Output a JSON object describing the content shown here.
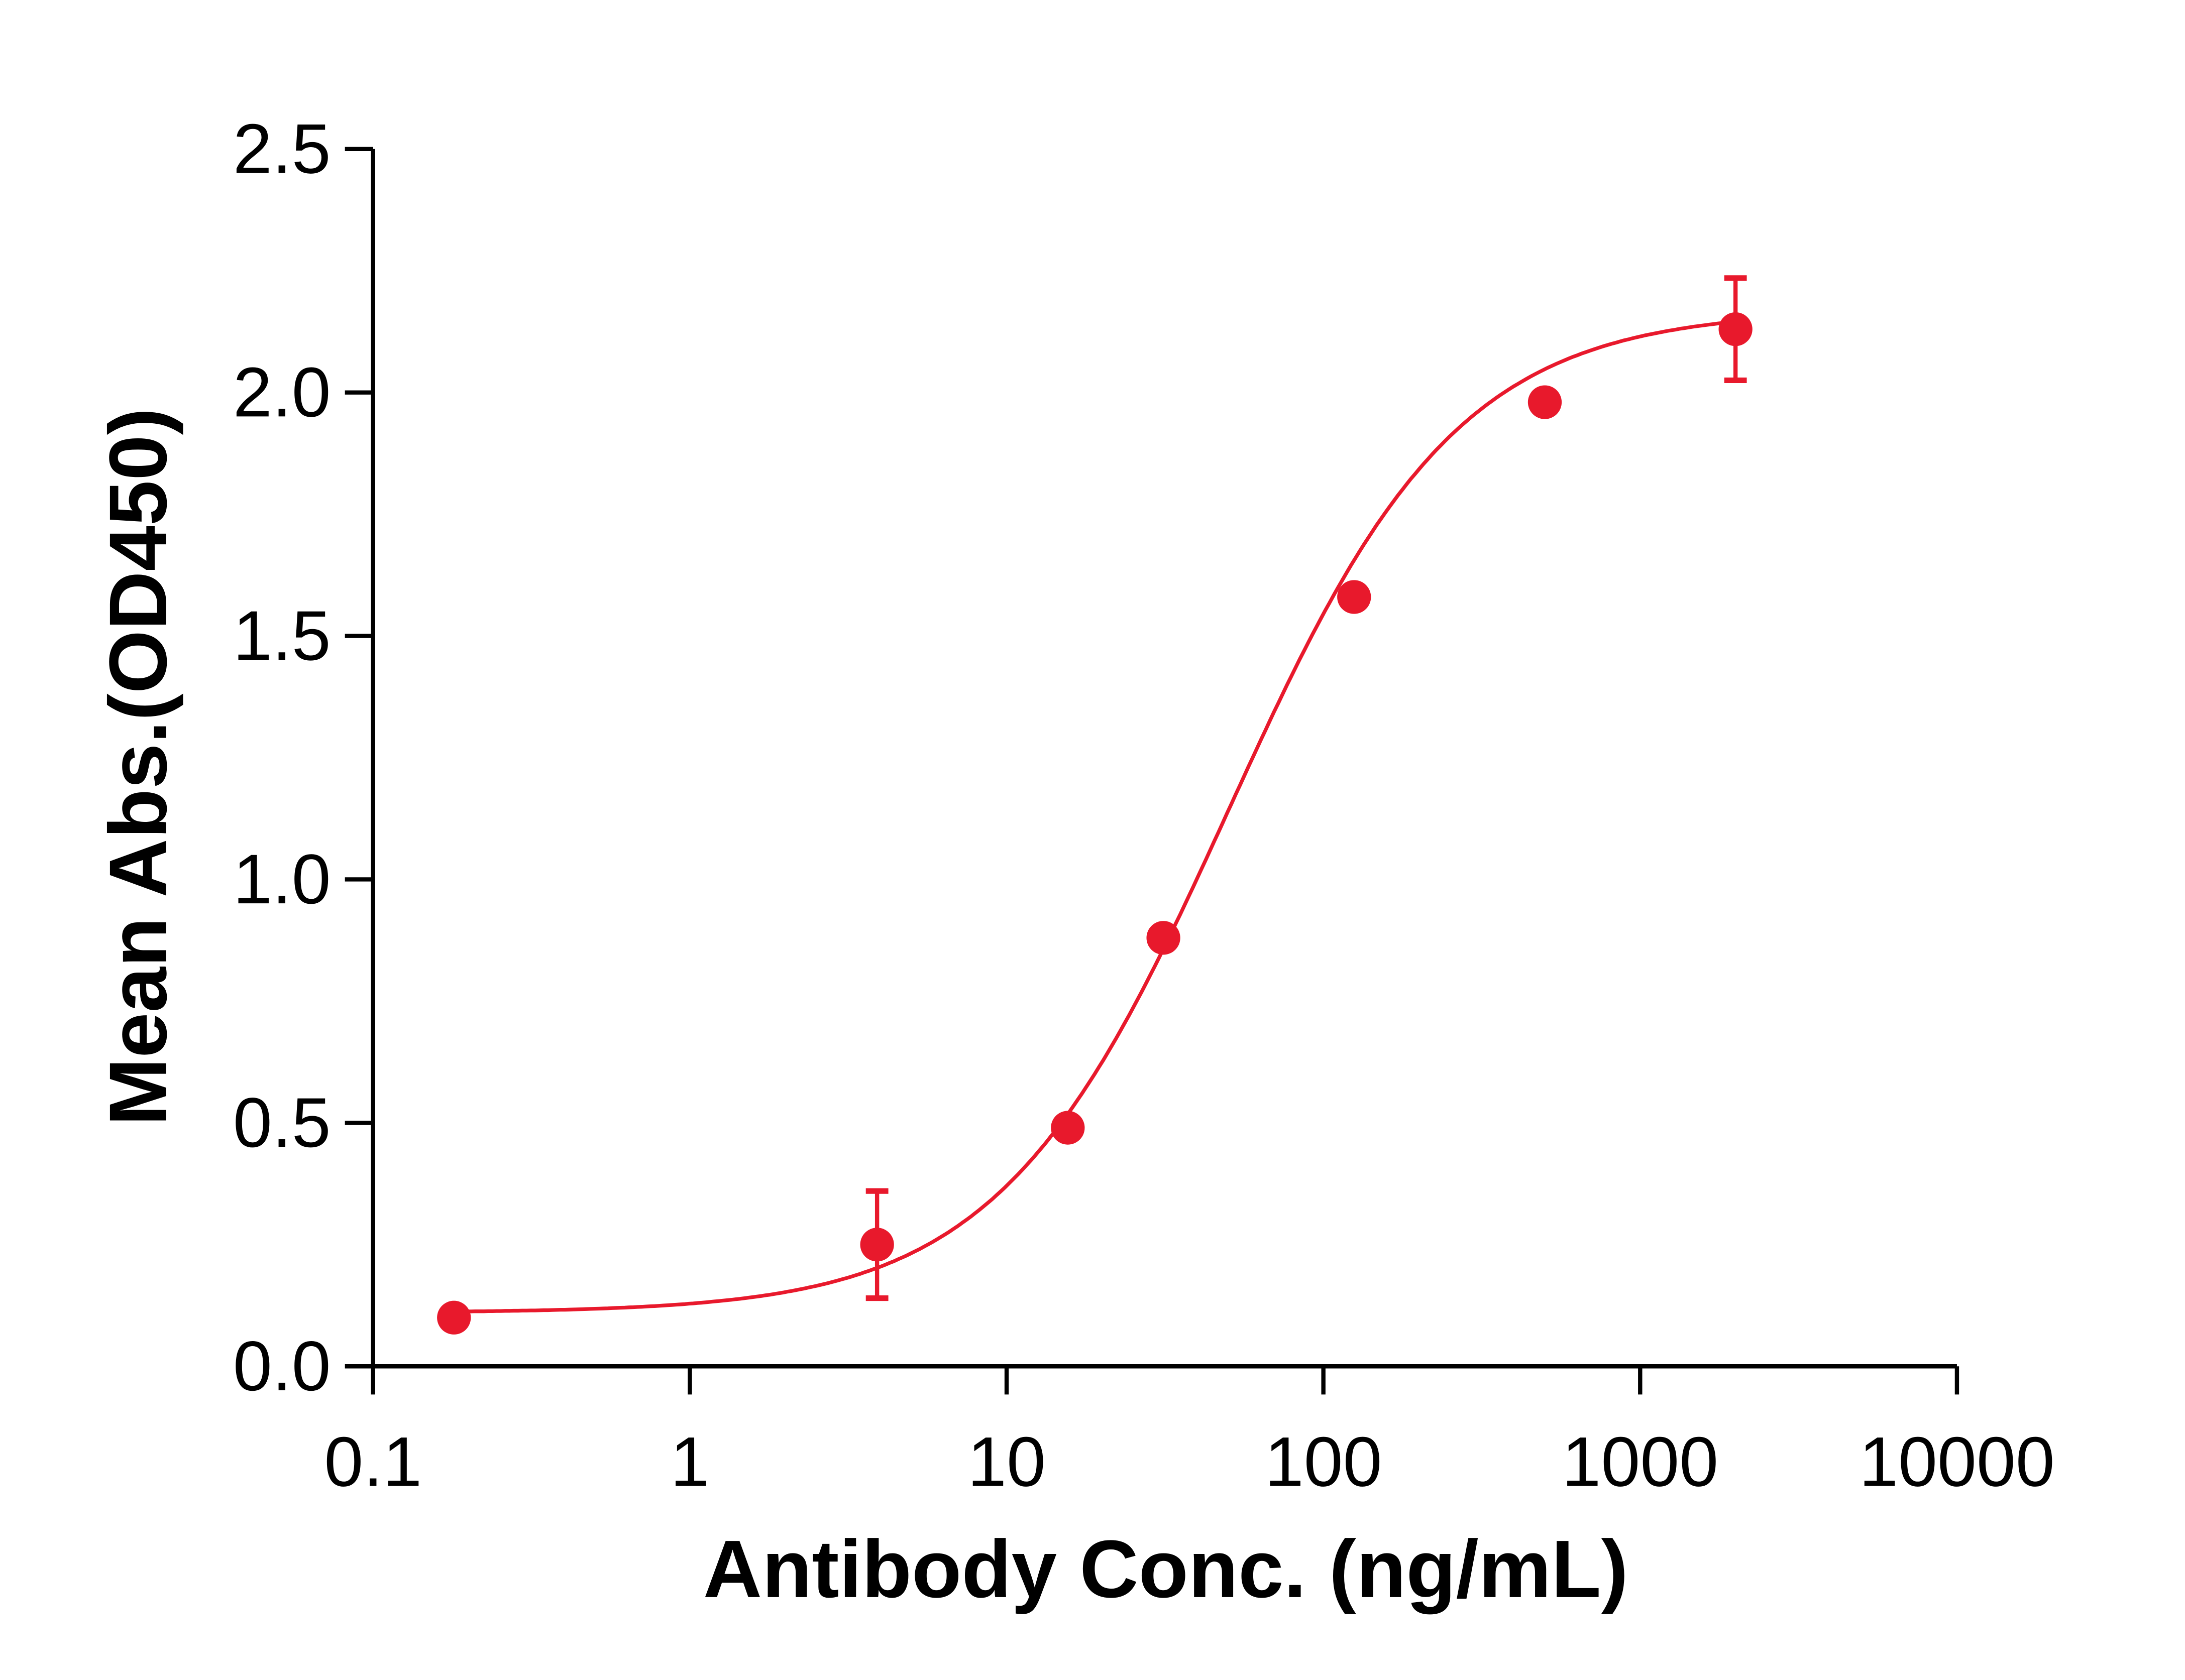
{
  "chart_data": {
    "type": "scatter",
    "title": "",
    "xlabel": "Antibody Conc. (ng/mL)",
    "ylabel": "Mean Abs.(OD450)",
    "xscale": "log",
    "xlim": [
      0.1,
      10000
    ],
    "ylim": [
      0,
      2.5
    ],
    "xticks": [
      0.1,
      1,
      10,
      100,
      1000,
      10000
    ],
    "xtick_labels": [
      "0.1",
      "1",
      "10",
      "100",
      "1000",
      "10000"
    ],
    "yticks": [
      0,
      0.5,
      1,
      1.5,
      2,
      2.5
    ],
    "ytick_labels": [
      "0.0",
      "0.5",
      "1.0",
      "1.5",
      "2.0",
      "2.5"
    ],
    "grid": false,
    "fit": "sigmoidal curve",
    "color": "#e8192c",
    "points": [
      {
        "x": 0.18,
        "y": 0.1,
        "err": 0
      },
      {
        "x": 3.9,
        "y": 0.25,
        "err": 0.11
      },
      {
        "x": 15.6,
        "y": 0.49,
        "err": 0
      },
      {
        "x": 31.25,
        "y": 0.88,
        "err": 0
      },
      {
        "x": 125,
        "y": 1.58,
        "err": 0
      },
      {
        "x": 500,
        "y": 1.98,
        "err": 0
      },
      {
        "x": 2000,
        "y": 2.13,
        "err": 0.105
      }
    ]
  }
}
